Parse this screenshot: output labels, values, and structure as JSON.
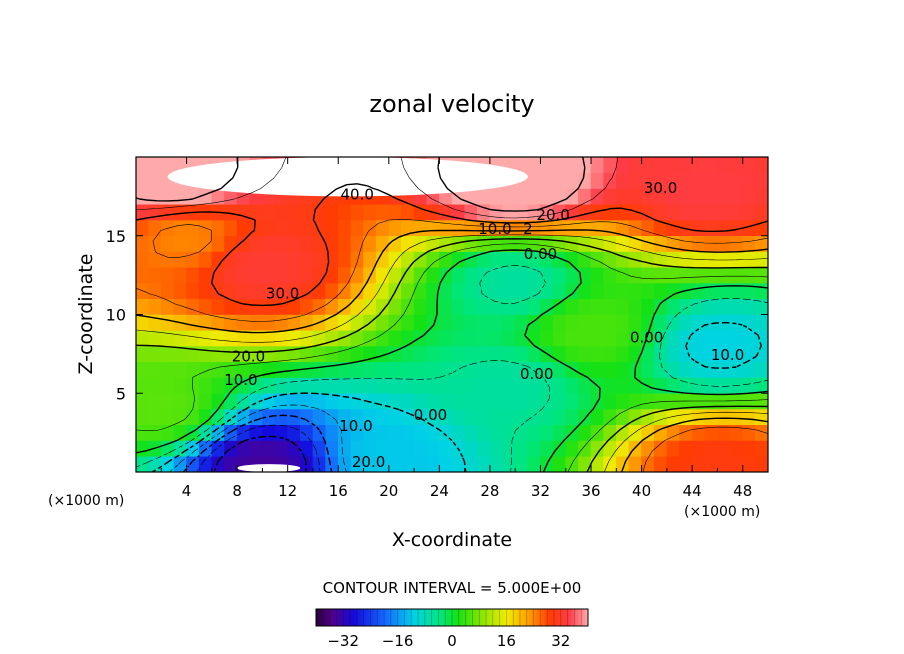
{
  "chart_data": {
    "type": "heatmap",
    "title": "zonal velocity",
    "xlabel": "X-coordinate",
    "ylabel": "Z-coordinate",
    "x_unit_label": "(×1000 m)",
    "x_unit_label_right": "(×1000 m)",
    "xlim": [
      0,
      50
    ],
    "ylim": [
      0,
      20
    ],
    "x_ticks": [
      4,
      8,
      12,
      16,
      20,
      24,
      28,
      32,
      36,
      40,
      44,
      48
    ],
    "y_ticks": [
      5,
      10,
      15
    ],
    "contour_interval_label": "CONTOUR INTERVAL = 5.000E+00",
    "colorbar": {
      "range": [
        -40,
        40
      ],
      "ticks": [
        -32,
        -16,
        0,
        16,
        32
      ]
    },
    "contour_labels": [
      {
        "text": "40.0",
        "x": 17.5,
        "z": 17.6
      },
      {
        "text": "30.0",
        "x": 41.5,
        "z": 18.0
      },
      {
        "text": "20.0",
        "x": 33.0,
        "z": 16.3
      },
      {
        "text": "10.0",
        "x": 28.4,
        "z": 15.4
      },
      {
        "text": "2",
        "x": 31.0,
        "z": 15.4
      },
      {
        "text": "0.00",
        "x": 32.0,
        "z": 13.8
      },
      {
        "text": "30.0",
        "x": 11.6,
        "z": 11.3
      },
      {
        "text": "20.0",
        "x": 8.9,
        "z": 7.3
      },
      {
        "text": "10.0",
        "x": 8.3,
        "z": 5.8
      },
      {
        "text": "0.00",
        "x": 23.3,
        "z": 3.6
      },
      {
        "text": "0.00",
        "x": 31.7,
        "z": 6.2
      },
      {
        "text": "0.00",
        "x": 40.4,
        "z": 8.5
      },
      {
        "text": "10.0",
        "x": 46.8,
        "z": 7.4
      },
      {
        "text": "10.0",
        "x": 17.4,
        "z": 2.9
      },
      {
        "text": "20.0",
        "x": 18.4,
        "z": 0.6
      }
    ],
    "field_samples": [
      {
        "x": 3,
        "z": 18.5,
        "value": 44
      },
      {
        "x": 30,
        "z": 18.5,
        "value": 45
      },
      {
        "x": 45,
        "z": 18.0,
        "value": 34
      },
      {
        "x": 10,
        "z": 13,
        "value": 33
      },
      {
        "x": 4,
        "z": 15,
        "value": 24
      },
      {
        "x": 30,
        "z": 12,
        "value": -6
      },
      {
        "x": 46,
        "z": 8,
        "value": -11
      },
      {
        "x": 29.5,
        "z": 5.5,
        "value": -6
      },
      {
        "x": 10,
        "z": 0.5,
        "value": -34
      },
      {
        "x": 20,
        "z": 1,
        "value": -12
      },
      {
        "x": 46,
        "z": 0.5,
        "value": 30
      },
      {
        "x": 2,
        "z": 4,
        "value": 6
      },
      {
        "x": 36,
        "z": 9,
        "value": 5
      }
    ],
    "blank_regions": [
      {
        "x_range": [
          2.5,
          31
        ],
        "z_range": [
          17.5,
          20
        ]
      },
      {
        "x_range": [
          8,
          13
        ],
        "z_range": [
          0,
          0.5
        ]
      }
    ]
  }
}
